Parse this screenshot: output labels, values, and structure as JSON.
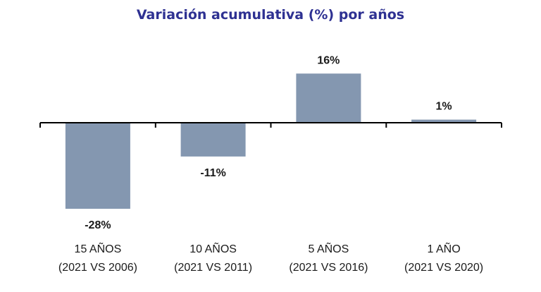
{
  "chart_data": {
    "type": "bar",
    "title": "Variación acumulativa (%) por años",
    "categories": [
      {
        "line1": "15 AÑOS",
        "line2": "(2021 VS 2006)"
      },
      {
        "line1": "10 AÑOS",
        "line2": "(2021 VS 2011)"
      },
      {
        "line1": "5 AÑOS",
        "line2": "(2021 VS 2016)"
      },
      {
        "line1": "1 AÑO",
        "line2": "(2021 VS 2020)"
      }
    ],
    "values": [
      -28,
      -11,
      16,
      1
    ],
    "data_labels": [
      "-28%",
      "-11%",
      "16%",
      "1%"
    ],
    "bar_color": "#8497b0",
    "axis_color": "#000000",
    "title_color": "#2e3192",
    "ylim": [
      -30,
      20
    ],
    "grid": false,
    "legend": "none"
  }
}
